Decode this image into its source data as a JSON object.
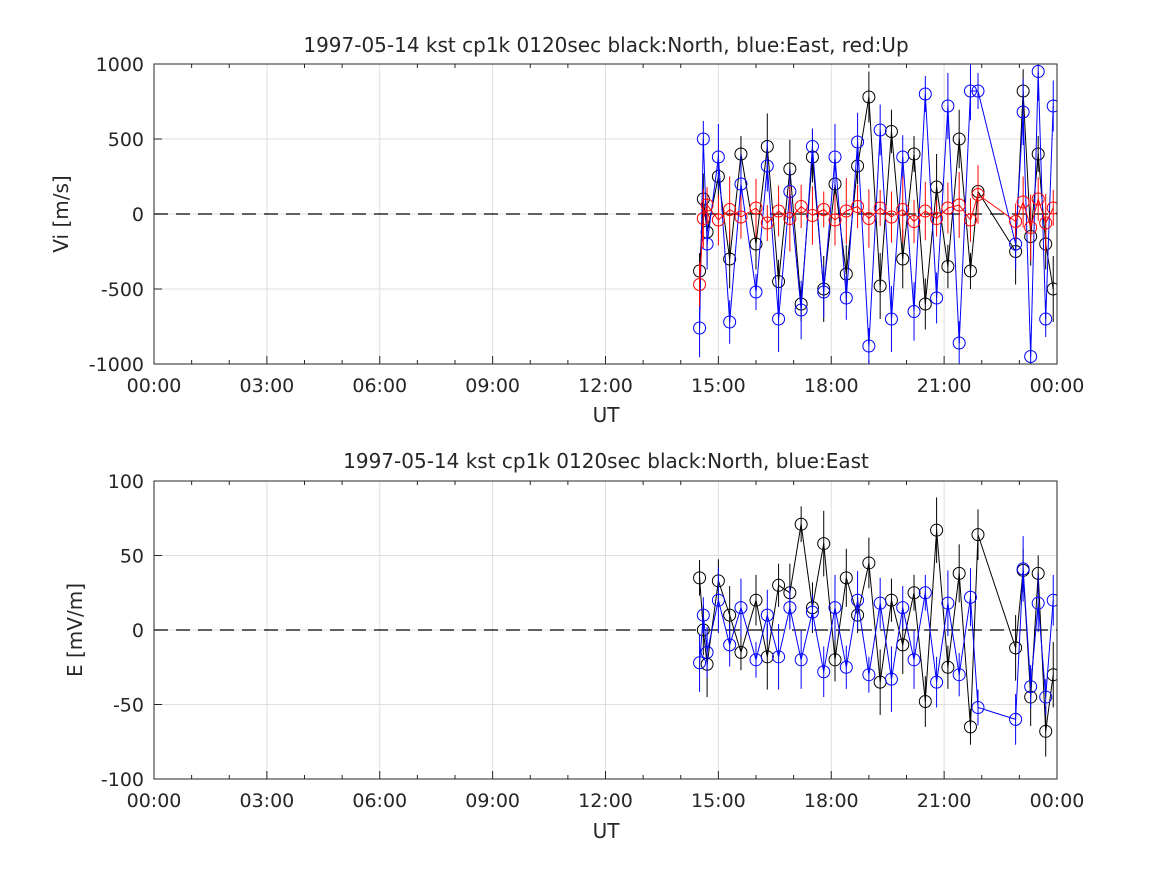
{
  "chart_data": [
    {
      "type": "scatter",
      "title": "1997-05-14 kst cp1k 0120sec black:North, blue:East, red:Up",
      "xlabel": "UT",
      "ylabel": "Vi [m/s]",
      "xlim": [
        0,
        24
      ],
      "ylim": [
        -1000,
        1000
      ],
      "x_ticks": [
        "00:00",
        "03:00",
        "06:00",
        "09:00",
        "12:00",
        "15:00",
        "18:00",
        "21:00",
        "00:00"
      ],
      "y_ticks": [
        "1000",
        "500",
        "0",
        "-500",
        "-1000"
      ],
      "grid": true,
      "reference_line": 0,
      "series": [
        {
          "name": "North",
          "color": "#000000",
          "x": [
            14.5,
            14.6,
            14.7,
            15.0,
            15.3,
            15.6,
            16.0,
            16.3,
            16.6,
            16.9,
            17.2,
            17.5,
            17.8,
            18.1,
            18.4,
            18.7,
            19.0,
            19.3,
            19.6,
            19.9,
            20.2,
            20.5,
            20.8,
            21.1,
            21.4,
            21.7,
            21.9,
            22.9,
            23.1,
            23.3,
            23.5,
            23.7,
            23.9
          ],
          "y": [
            -380,
            100,
            -120,
            250,
            -300,
            400,
            -200,
            450,
            -450,
            300,
            -600,
            380,
            -500,
            200,
            -400,
            320,
            780,
            -480,
            550,
            -300,
            400,
            -600,
            180,
            -350,
            500,
            -380,
            150,
            -250,
            820,
            -150,
            400,
            -200,
            -500
          ]
        },
        {
          "name": "East",
          "color": "#0000ff",
          "x": [
            14.5,
            14.6,
            14.7,
            15.0,
            15.3,
            15.6,
            16.0,
            16.3,
            16.6,
            16.9,
            17.2,
            17.5,
            17.8,
            18.1,
            18.4,
            18.7,
            19.0,
            19.3,
            19.6,
            19.9,
            20.2,
            20.5,
            20.8,
            21.1,
            21.4,
            21.7,
            21.9,
            22.9,
            23.1,
            23.3,
            23.5,
            23.7,
            23.9
          ],
          "y": [
            -760,
            500,
            -200,
            380,
            -720,
            200,
            -520,
            320,
            -700,
            150,
            -640,
            450,
            -520,
            380,
            -560,
            480,
            -880,
            560,
            -700,
            380,
            -650,
            800,
            -560,
            720,
            -860,
            820,
            820,
            -200,
            680,
            -950,
            950,
            -700,
            720
          ]
        },
        {
          "name": "Up",
          "color": "#ff0000",
          "x": [
            14.5,
            14.6,
            14.7,
            15.0,
            15.3,
            15.6,
            16.0,
            16.3,
            16.6,
            16.9,
            17.2,
            17.5,
            17.8,
            18.1,
            18.4,
            18.7,
            19.0,
            19.3,
            19.6,
            19.9,
            20.2,
            20.5,
            20.8,
            21.1,
            21.4,
            21.7,
            21.9,
            22.9,
            23.1,
            23.3,
            23.5,
            23.7,
            23.9
          ],
          "y": [
            -470,
            -30,
            60,
            -40,
            30,
            -20,
            40,
            -60,
            20,
            -30,
            50,
            -10,
            30,
            -40,
            20,
            50,
            -30,
            40,
            -20,
            30,
            -50,
            20,
            -30,
            40,
            60,
            -40,
            130,
            -50,
            80,
            -90,
            100,
            -60,
            40
          ]
        }
      ]
    },
    {
      "type": "scatter",
      "title": "1997-05-14 kst cp1k 0120sec black:North, blue:East",
      "xlabel": "UT",
      "ylabel": "E [mV/m]",
      "xlim": [
        0,
        24
      ],
      "ylim": [
        -100,
        100
      ],
      "x_ticks": [
        "00:00",
        "03:00",
        "06:00",
        "09:00",
        "12:00",
        "15:00",
        "18:00",
        "21:00",
        "00:00"
      ],
      "y_ticks": [
        "100",
        "50",
        "0",
        "-50",
        "-100"
      ],
      "grid": true,
      "reference_line": 0,
      "series": [
        {
          "name": "North",
          "color": "#000000",
          "x": [
            14.5,
            14.6,
            14.7,
            15.0,
            15.3,
            15.6,
            16.0,
            16.3,
            16.6,
            16.9,
            17.2,
            17.5,
            17.8,
            18.1,
            18.4,
            18.7,
            19.0,
            19.3,
            19.6,
            19.9,
            20.2,
            20.5,
            20.8,
            21.1,
            21.4,
            21.7,
            21.9,
            22.9,
            23.1,
            23.3,
            23.5,
            23.7,
            23.9
          ],
          "y": [
            35,
            0,
            -23,
            33,
            10,
            -15,
            20,
            -18,
            30,
            25,
            71,
            15,
            58,
            -20,
            35,
            10,
            45,
            -35,
            20,
            -10,
            25,
            -48,
            67,
            -25,
            38,
            -65,
            64,
            -12,
            40,
            -45,
            38,
            -68,
            -30
          ]
        },
        {
          "name": "East",
          "color": "#0000ff",
          "x": [
            14.5,
            14.6,
            14.7,
            15.0,
            15.3,
            15.6,
            16.0,
            16.3,
            16.6,
            16.9,
            17.2,
            17.5,
            17.8,
            18.1,
            18.4,
            18.7,
            19.0,
            19.3,
            19.6,
            19.9,
            20.2,
            20.5,
            20.8,
            21.1,
            21.4,
            21.7,
            21.9,
            22.9,
            23.1,
            23.3,
            23.5,
            23.7,
            23.9
          ],
          "y": [
            -22,
            10,
            -15,
            20,
            -10,
            15,
            -20,
            10,
            -18,
            15,
            -20,
            12,
            -28,
            15,
            -25,
            20,
            -30,
            18,
            -33,
            15,
            -20,
            25,
            -35,
            18,
            -30,
            22,
            -52,
            -60,
            41,
            -38,
            18,
            -45,
            20
          ]
        }
      ]
    }
  ]
}
